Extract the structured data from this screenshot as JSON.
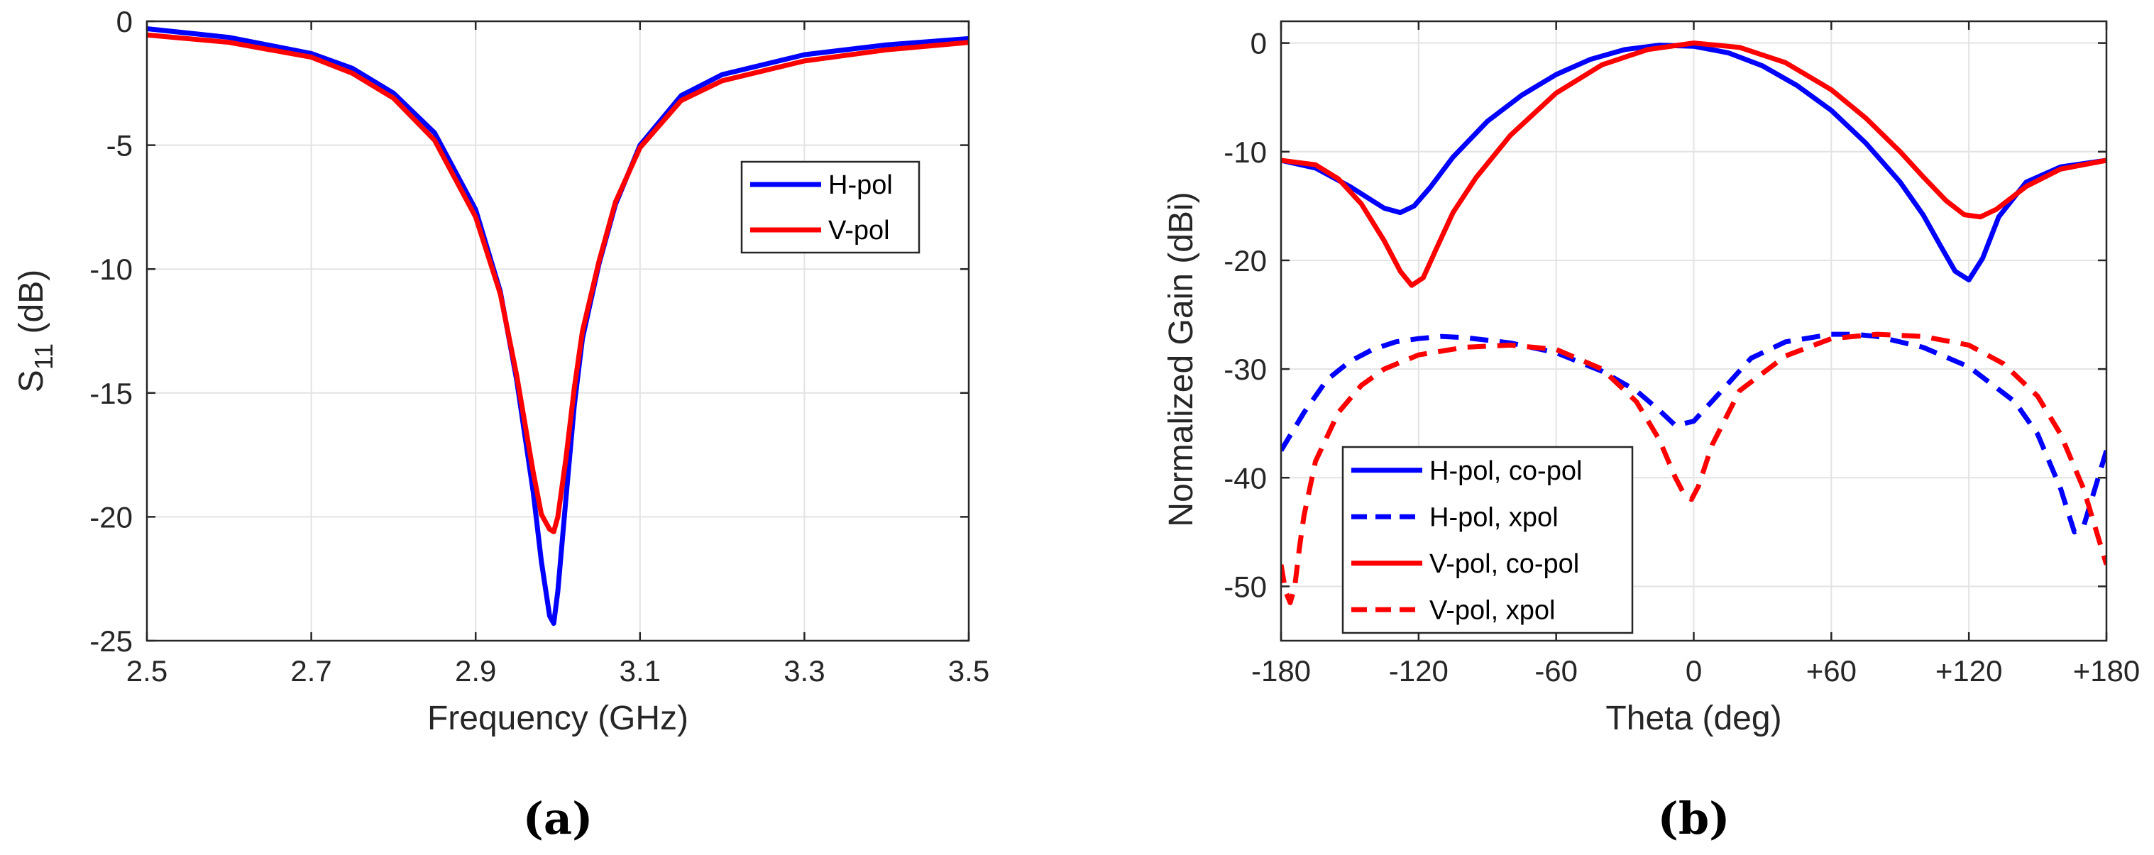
{
  "chart_data": [
    {
      "type": "line",
      "panel_label": "(a)",
      "title": "",
      "xlabel": "Frequency (GHz)",
      "ylabel": "S_11 (dB)",
      "ylabel_main": "S",
      "ylabel_sub": "11",
      "ylabel_units": " (dB)",
      "xlim": [
        2.5,
        3.5
      ],
      "ylim": [
        -25,
        0
      ],
      "xticks": [
        2.5,
        2.7,
        2.9,
        3.1,
        3.3,
        3.5
      ],
      "xtick_labels": [
        "2.5",
        "2.7",
        "2.9",
        "3.1",
        "3.3",
        "3.5"
      ],
      "yticks": [
        0,
        -5,
        -10,
        -15,
        -20,
        -25
      ],
      "ytick_labels": [
        "0",
        "-5",
        "-10",
        "-15",
        "-20",
        "-25"
      ],
      "grid": true,
      "legend_position": "right-middle",
      "series": [
        {
          "name": "H-pol",
          "color": "#0000ff",
          "dash": "solid",
          "x": [
            2.5,
            2.6,
            2.7,
            2.75,
            2.8,
            2.85,
            2.9,
            2.93,
            2.95,
            2.97,
            2.98,
            2.99,
            2.995,
            3.0,
            3.01,
            3.02,
            3.03,
            3.05,
            3.07,
            3.1,
            3.15,
            3.2,
            3.3,
            3.4,
            3.5
          ],
          "y": [
            -0.3,
            -0.65,
            -1.3,
            -1.9,
            -2.9,
            -4.5,
            -7.6,
            -10.9,
            -14.5,
            -19.0,
            -21.8,
            -24.0,
            -24.3,
            -23.0,
            -19.2,
            -15.5,
            -12.8,
            -9.8,
            -7.4,
            -5.0,
            -3.0,
            -2.15,
            -1.35,
            -0.95,
            -0.7
          ]
        },
        {
          "name": "V-pol",
          "color": "#ff0000",
          "dash": "solid",
          "x": [
            2.5,
            2.6,
            2.7,
            2.75,
            2.8,
            2.85,
            2.9,
            2.93,
            2.95,
            2.97,
            2.98,
            2.99,
            2.995,
            3.0,
            3.01,
            3.02,
            3.03,
            3.05,
            3.07,
            3.1,
            3.15,
            3.2,
            3.3,
            3.4,
            3.5
          ],
          "y": [
            -0.55,
            -0.85,
            -1.45,
            -2.1,
            -3.1,
            -4.8,
            -7.9,
            -11.0,
            -14.3,
            -18.2,
            -19.9,
            -20.5,
            -20.6,
            -20.0,
            -17.6,
            -14.8,
            -12.5,
            -9.7,
            -7.3,
            -5.1,
            -3.2,
            -2.4,
            -1.6,
            -1.15,
            -0.85
          ]
        }
      ]
    },
    {
      "type": "line",
      "panel_label": "(b)",
      "title": "",
      "xlabel": "Theta (deg)",
      "ylabel": "Normalized Gain (dBi)",
      "xlim": [
        -180,
        180
      ],
      "ylim": [
        -55,
        2
      ],
      "xticks": [
        -180,
        -120,
        -60,
        0,
        60,
        120,
        180
      ],
      "xtick_labels": [
        "-180",
        "-120",
        "-60",
        "0",
        "+60",
        "+120",
        "+180"
      ],
      "yticks": [
        0,
        -10,
        -20,
        -30,
        -40,
        -50
      ],
      "ytick_labels": [
        "0",
        "-10",
        "-20",
        "-30",
        "-40",
        "-50"
      ],
      "grid": true,
      "legend_position": "bottom-left",
      "series": [
        {
          "name": "H-pol, co-pol",
          "color": "#0000ff",
          "dash": "solid",
          "x": [
            -180,
            -165,
            -150,
            -135,
            -128,
            -122,
            -115,
            -105,
            -90,
            -75,
            -60,
            -45,
            -30,
            -15,
            0,
            15,
            30,
            45,
            60,
            75,
            90,
            100,
            108,
            114,
            120,
            126,
            133,
            145,
            160,
            180
          ],
          "y": [
            -10.8,
            -11.5,
            -13.2,
            -15.2,
            -15.6,
            -15.0,
            -13.3,
            -10.5,
            -7.2,
            -4.8,
            -2.9,
            -1.5,
            -0.6,
            -0.2,
            -0.3,
            -0.9,
            -2.1,
            -3.9,
            -6.2,
            -9.2,
            -12.8,
            -15.8,
            -18.8,
            -21.0,
            -21.8,
            -19.8,
            -16.0,
            -12.8,
            -11.4,
            -10.8
          ]
        },
        {
          "name": "H-pol, xpol",
          "color": "#0000ff",
          "dash": "dashed",
          "x": [
            -180,
            -170,
            -160,
            -150,
            -140,
            -130,
            -120,
            -110,
            -100,
            -80,
            -60,
            -40,
            -25,
            -15,
            -8,
            0,
            10,
            25,
            40,
            60,
            70,
            80,
            100,
            120,
            140,
            150,
            160,
            166,
            170,
            175,
            180
          ],
          "y": [
            -37.5,
            -34.0,
            -31.0,
            -29.3,
            -28.2,
            -27.5,
            -27.2,
            -27.0,
            -27.1,
            -27.6,
            -28.5,
            -30.2,
            -32.0,
            -33.8,
            -35.2,
            -34.8,
            -32.5,
            -29.0,
            -27.5,
            -26.8,
            -26.8,
            -27.0,
            -28.0,
            -29.8,
            -33.0,
            -36.0,
            -41.0,
            -45.0,
            -44.5,
            -41.0,
            -37.5
          ]
        },
        {
          "name": "V-pol, co-pol",
          "color": "#ff0000",
          "dash": "solid",
          "x": [
            -180,
            -165,
            -155,
            -145,
            -135,
            -128,
            -123,
            -118,
            -112,
            -105,
            -95,
            -80,
            -60,
            -40,
            -20,
            0,
            20,
            40,
            60,
            75,
            90,
            100,
            110,
            118,
            125,
            132,
            145,
            160,
            180
          ],
          "y": [
            -10.8,
            -11.2,
            -12.5,
            -14.8,
            -18.2,
            -21.0,
            -22.3,
            -21.6,
            -18.8,
            -15.6,
            -12.4,
            -8.5,
            -4.6,
            -2.0,
            -0.6,
            0.0,
            -0.4,
            -1.8,
            -4.3,
            -6.9,
            -10.0,
            -12.3,
            -14.5,
            -15.8,
            -16.0,
            -15.3,
            -13.2,
            -11.6,
            -10.8
          ]
        },
        {
          "name": "V-pol, xpol",
          "color": "#ff0000",
          "dash": "dashed",
          "x": [
            -180,
            -178,
            -176,
            -174,
            -172,
            -170,
            -165,
            -155,
            -145,
            -135,
            -120,
            -100,
            -80,
            -60,
            -40,
            -25,
            -15,
            -8,
            -4,
            -1,
            2,
            8,
            20,
            40,
            60,
            80,
            100,
            120,
            135,
            150,
            160,
            170,
            180
          ],
          "y": [
            -48.0,
            -50.5,
            -51.5,
            -50.0,
            -46.5,
            -43.5,
            -38.5,
            -34.0,
            -31.5,
            -30.0,
            -28.7,
            -28.0,
            -27.8,
            -28.2,
            -30.0,
            -33.0,
            -36.5,
            -40.0,
            -41.6,
            -42.0,
            -40.8,
            -37.0,
            -32.0,
            -28.8,
            -27.2,
            -26.8,
            -27.0,
            -27.8,
            -29.5,
            -32.5,
            -36.0,
            -41.0,
            -48.0
          ]
        }
      ]
    }
  ]
}
